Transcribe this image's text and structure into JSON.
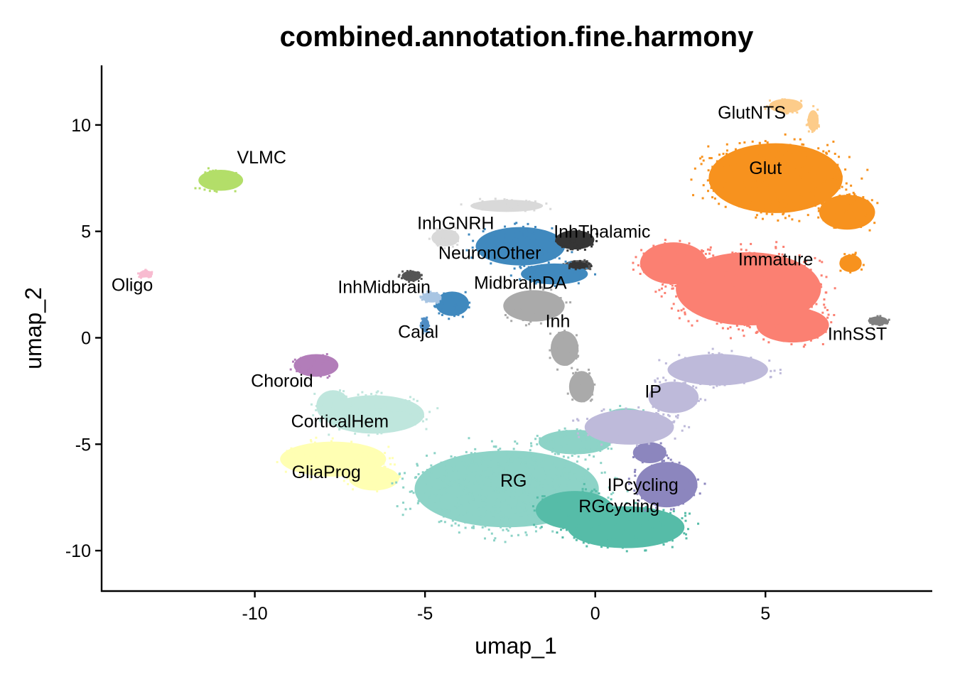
{
  "chart_data": {
    "type": "scatter",
    "title": "combined.annotation.fine.harmony",
    "xlabel": "umap_1",
    "ylabel": "umap_2",
    "xlim": [
      -14.5,
      9.9
    ],
    "ylim": [
      -11.9,
      12.8
    ],
    "x_ticks": [
      -10,
      -5,
      0,
      5
    ],
    "y_ticks": [
      -10,
      -5,
      0,
      5,
      10
    ],
    "x_tick_labels": [
      "-10",
      "-5",
      "0",
      "5"
    ],
    "y_tick_labels": [
      "-10",
      "-5",
      "0",
      "5",
      "10"
    ],
    "grid": false,
    "legend": "none",
    "clusters": [
      {
        "name": "VLMC",
        "color": "#B3DE69",
        "label_x": -9.8,
        "label_y": 8.2,
        "blobs": [
          {
            "x": -11.0,
            "y": 7.4,
            "rx": 0.8,
            "ry": 0.6
          }
        ]
      },
      {
        "name": "Oligo",
        "color": "#F8BBD0",
        "label_x": -13.6,
        "label_y": 2.2,
        "blobs": [
          {
            "x": -13.2,
            "y": 3.0,
            "rx": 0.25,
            "ry": 0.2
          }
        ]
      },
      {
        "name": "Choroid",
        "color": "#B27DB9",
        "label_x": -9.2,
        "label_y": -2.3,
        "blobs": [
          {
            "x": -8.2,
            "y": -1.3,
            "rx": 0.8,
            "ry": 0.65
          }
        ]
      },
      {
        "name": "CorticalHem",
        "color": "#BFE6DD",
        "label_x": -7.5,
        "label_y": -4.2,
        "blobs": [
          {
            "x": -6.5,
            "y": -3.6,
            "rx": 1.8,
            "ry": 1.1
          },
          {
            "x": -7.7,
            "y": -3.2,
            "rx": 0.6,
            "ry": 0.9
          }
        ]
      },
      {
        "name": "GliaProg",
        "color": "#FFFFB3",
        "label_x": -7.9,
        "label_y": -6.6,
        "blobs": [
          {
            "x": -7.7,
            "y": -5.7,
            "rx": 1.9,
            "ry": 1.0
          },
          {
            "x": -6.5,
            "y": -6.6,
            "rx": 0.9,
            "ry": 0.7
          }
        ]
      },
      {
        "name": "RG",
        "color": "#8DD3C7",
        "label_x": -2.4,
        "label_y": -7.0,
        "blobs": [
          {
            "x": -2.6,
            "y": -7.1,
            "rx": 3.3,
            "ry": 2.2
          },
          {
            "x": -0.6,
            "y": -4.9,
            "rx": 1.3,
            "ry": 0.7
          },
          {
            "x": 0.9,
            "y": -3.8,
            "rx": 0.8,
            "ry": 0.6
          }
        ]
      },
      {
        "name": "RGcycling",
        "color": "#56BCA8",
        "label_x": 0.7,
        "label_y": -8.2,
        "blobs": [
          {
            "x": 0.9,
            "y": -8.9,
            "rx": 2.1,
            "ry": 1.2
          },
          {
            "x": -0.6,
            "y": -8.1,
            "rx": 1.4,
            "ry": 1.1
          }
        ]
      },
      {
        "name": "IPcycling",
        "color": "#8C86BE",
        "label_x": 1.4,
        "label_y": -7.2,
        "blobs": [
          {
            "x": 2.1,
            "y": -6.9,
            "rx": 1.1,
            "ry": 1.3
          },
          {
            "x": 1.6,
            "y": -5.4,
            "rx": 0.6,
            "ry": 0.6
          }
        ]
      },
      {
        "name": "IP",
        "color": "#BEBADA",
        "label_x": 1.7,
        "label_y": -2.8,
        "blobs": [
          {
            "x": 3.6,
            "y": -1.5,
            "rx": 1.8,
            "ry": 0.9
          },
          {
            "x": 1.0,
            "y": -4.2,
            "rx": 1.6,
            "ry": 1.0
          },
          {
            "x": 2.3,
            "y": -2.8,
            "rx": 0.9,
            "ry": 0.9
          }
        ]
      },
      {
        "name": "Immature",
        "color": "#FB8072",
        "label_x": 5.3,
        "label_y": 3.4,
        "blobs": [
          {
            "x": 4.5,
            "y": 2.3,
            "rx": 2.6,
            "ry": 2.1
          },
          {
            "x": 2.3,
            "y": 3.5,
            "rx": 1.2,
            "ry": 1.2
          },
          {
            "x": 5.8,
            "y": 0.6,
            "rx": 1.3,
            "ry": 1.0
          }
        ]
      },
      {
        "name": "Glut",
        "color": "#F7921E",
        "label_x": 5.0,
        "label_y": 7.7,
        "blobs": [
          {
            "x": 5.3,
            "y": 7.5,
            "rx": 2.4,
            "ry": 2.0
          },
          {
            "x": 7.4,
            "y": 5.9,
            "rx": 1.0,
            "ry": 1.0
          },
          {
            "x": 7.5,
            "y": 3.5,
            "rx": 0.4,
            "ry": 0.5
          }
        ]
      },
      {
        "name": "GlutNTS",
        "color": "#FDCC8A",
        "label_x": 4.6,
        "label_y": 10.3,
        "blobs": [
          {
            "x": 5.6,
            "y": 10.9,
            "rx": 0.6,
            "ry": 0.4
          },
          {
            "x": 6.4,
            "y": 10.2,
            "rx": 0.2,
            "ry": 0.6
          }
        ]
      },
      {
        "name": "InhSST",
        "color": "#808080",
        "label_x": 7.7,
        "label_y": -0.1,
        "blobs": [
          {
            "x": 8.3,
            "y": 0.8,
            "rx": 0.35,
            "ry": 0.25
          }
        ]
      },
      {
        "name": "InhGNRH",
        "color": "#D9D9D9",
        "label_x": -4.1,
        "label_y": 5.1,
        "blobs": [
          {
            "x": -2.6,
            "y": 6.2,
            "rx": 1.3,
            "ry": 0.35
          },
          {
            "x": -4.4,
            "y": 4.7,
            "rx": 0.5,
            "ry": 0.5
          }
        ]
      },
      {
        "name": "NeuronOther",
        "color": "#555555",
        "label_x": -3.1,
        "label_y": 3.7,
        "blobs": [
          {
            "x": -5.4,
            "y": 2.9,
            "rx": 0.35,
            "ry": 0.3
          },
          {
            "x": -0.5,
            "y": 3.4,
            "rx": 0.5,
            "ry": 0.3
          }
        ]
      },
      {
        "name": "MidbrainDA",
        "color": "#4089BE",
        "label_x": -2.2,
        "label_y": 2.3,
        "blobs": [
          {
            "x": -2.2,
            "y": 4.3,
            "rx": 1.6,
            "ry": 1.1
          },
          {
            "x": -1.2,
            "y": 3.0,
            "rx": 1.2,
            "ry": 0.6
          },
          {
            "x": -4.2,
            "y": 1.6,
            "rx": 0.6,
            "ry": 0.7
          }
        ]
      },
      {
        "name": "InhMidbrain",
        "color": "#A8C5E3",
        "label_x": -6.2,
        "label_y": 2.1,
        "blobs": [
          {
            "x": -4.8,
            "y": 1.9,
            "rx": 0.35,
            "ry": 0.3
          }
        ]
      },
      {
        "name": "InhThalamic",
        "color": "#353535",
        "label_x": 0.2,
        "label_y": 4.7,
        "blobs": [
          {
            "x": -0.6,
            "y": 4.6,
            "rx": 0.7,
            "ry": 0.55
          },
          {
            "x": -0.5,
            "y": 3.4,
            "rx": 0.35,
            "ry": 0.2
          }
        ]
      },
      {
        "name": "Cajal",
        "color": "#4F8DC4",
        "label_x": -5.2,
        "label_y": 0.0,
        "blobs": [
          {
            "x": -5.0,
            "y": 0.6,
            "rx": 0.15,
            "ry": 0.4
          }
        ]
      },
      {
        "name": "Inh",
        "color": "#AAAAAA",
        "label_x": -1.1,
        "label_y": 0.5,
        "blobs": [
          {
            "x": -1.8,
            "y": 1.5,
            "rx": 1.1,
            "ry": 0.9
          },
          {
            "x": -0.9,
            "y": -0.5,
            "rx": 0.5,
            "ry": 1.0
          },
          {
            "x": -0.4,
            "y": -2.3,
            "rx": 0.45,
            "ry": 0.9
          }
        ]
      }
    ]
  }
}
